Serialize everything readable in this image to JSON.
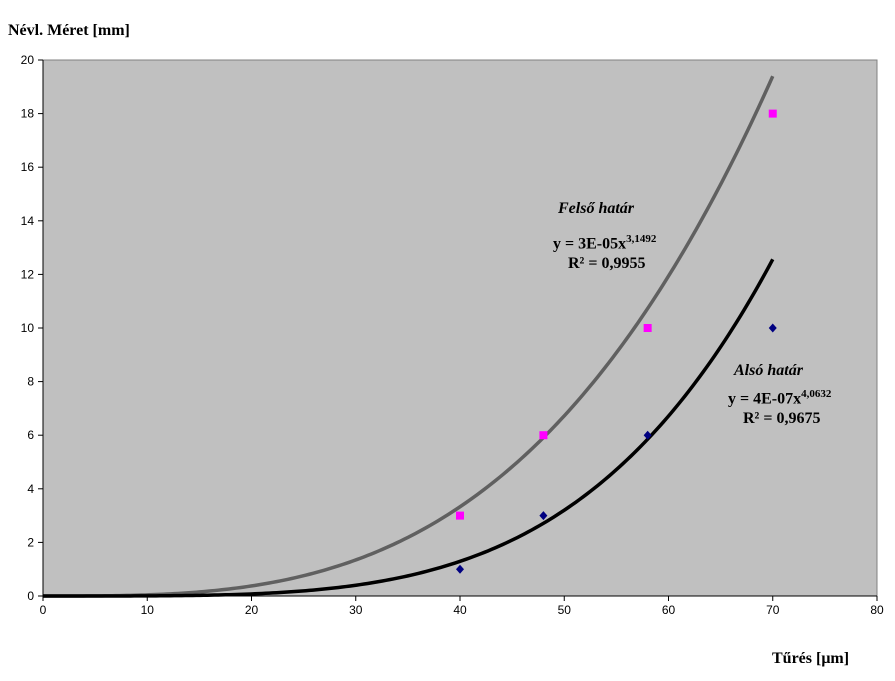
{
  "chart_data": {
    "type": "scatter",
    "title": "",
    "xlabel": "Tűrés [μm]",
    "ylabel": "Névl. Méret [mm]",
    "xlim": [
      0,
      80
    ],
    "ylim": [
      0,
      20
    ],
    "xticks": [
      0,
      10,
      20,
      30,
      40,
      50,
      60,
      70,
      80
    ],
    "yticks": [
      0,
      2,
      4,
      6,
      8,
      10,
      12,
      14,
      16,
      18,
      20
    ],
    "grid": false,
    "background": "#c0c0c0",
    "series": [
      {
        "x": [
          40,
          48,
          58,
          70
        ],
        "values": [
          3,
          6,
          10,
          18
        ],
        "marker": "square",
        "color": "#ff00ff",
        "trendline": {
          "type": "power",
          "a": 3e-05,
          "b": 3.1492,
          "color": "#606060",
          "label_name": "Felső határ",
          "equation_prefix": "y = 3E-05x",
          "equation_exponent": "3,1492",
          "r2": "R² = 0,9955"
        }
      },
      {
        "x": [
          40,
          48,
          58,
          70
        ],
        "values": [
          1,
          3,
          6,
          10
        ],
        "marker": "diamond",
        "color": "#000080",
        "trendline": {
          "type": "power",
          "a": 4e-07,
          "b": 4.0632,
          "color": "#000000",
          "label_name": "Alsó határ",
          "equation_prefix": "y = 4E-07x",
          "equation_exponent": "4,0632",
          "r2": "R² = 0,9675"
        }
      }
    ]
  }
}
